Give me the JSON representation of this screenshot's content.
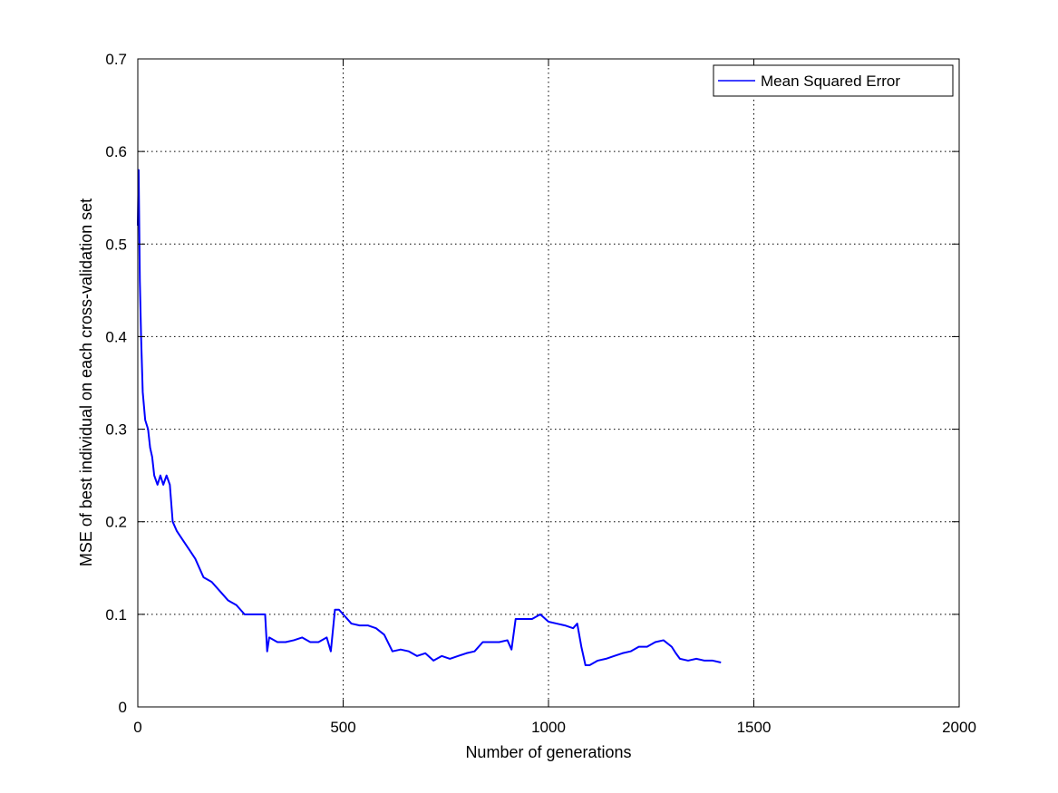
{
  "chart_data": {
    "type": "line",
    "title": "",
    "xlabel": "Number of generations",
    "ylabel": "MSE of best individual on each cross-validation set",
    "xlim": [
      0,
      2000
    ],
    "ylim": [
      0,
      0.7
    ],
    "xticks": [
      0,
      500,
      1000,
      1500,
      2000
    ],
    "yticks": [
      0,
      0.1,
      0.2,
      0.3,
      0.4,
      0.5,
      0.6,
      0.7
    ],
    "xtick_labels": [
      "0",
      "500",
      "1000",
      "1500",
      "2000"
    ],
    "ytick_labels": [
      "0",
      "0.1",
      "0.2",
      "0.3",
      "0.4",
      "0.5",
      "0.6",
      "0.7"
    ],
    "grid": true,
    "legend_position": "top-right",
    "series": [
      {
        "name": "Mean Squared Error",
        "color": "#0000ff",
        "x": [
          0,
          2,
          5,
          8,
          12,
          18,
          25,
          30,
          35,
          40,
          48,
          55,
          62,
          70,
          78,
          85,
          95,
          110,
          125,
          140,
          160,
          180,
          200,
          220,
          240,
          260,
          280,
          300,
          310,
          315,
          320,
          340,
          360,
          380,
          400,
          420,
          440,
          460,
          470,
          480,
          490,
          500,
          520,
          540,
          560,
          580,
          600,
          620,
          640,
          660,
          680,
          700,
          720,
          740,
          760,
          780,
          800,
          820,
          840,
          860,
          880,
          900,
          910,
          920,
          940,
          960,
          980,
          1000,
          1020,
          1040,
          1060,
          1070,
          1080,
          1090,
          1100,
          1120,
          1140,
          1160,
          1180,
          1200,
          1220,
          1240,
          1260,
          1280,
          1300,
          1310,
          1320,
          1340,
          1360,
          1380,
          1400,
          1420
        ],
        "y": [
          0.52,
          0.58,
          0.46,
          0.4,
          0.34,
          0.31,
          0.3,
          0.28,
          0.27,
          0.25,
          0.24,
          0.25,
          0.24,
          0.25,
          0.24,
          0.2,
          0.19,
          0.18,
          0.17,
          0.16,
          0.14,
          0.135,
          0.125,
          0.115,
          0.11,
          0.1,
          0.1,
          0.1,
          0.1,
          0.06,
          0.075,
          0.07,
          0.07,
          0.072,
          0.075,
          0.07,
          0.07,
          0.075,
          0.06,
          0.105,
          0.105,
          0.1,
          0.09,
          0.088,
          0.088,
          0.085,
          0.078,
          0.06,
          0.062,
          0.06,
          0.055,
          0.058,
          0.05,
          0.055,
          0.052,
          0.055,
          0.058,
          0.06,
          0.07,
          0.07,
          0.07,
          0.072,
          0.062,
          0.095,
          0.095,
          0.095,
          0.1,
          0.092,
          0.09,
          0.088,
          0.085,
          0.09,
          0.065,
          0.045,
          0.045,
          0.05,
          0.052,
          0.055,
          0.058,
          0.06,
          0.065,
          0.065,
          0.07,
          0.072,
          0.065,
          0.058,
          0.052,
          0.05,
          0.052,
          0.05,
          0.05,
          0.048
        ]
      }
    ]
  }
}
